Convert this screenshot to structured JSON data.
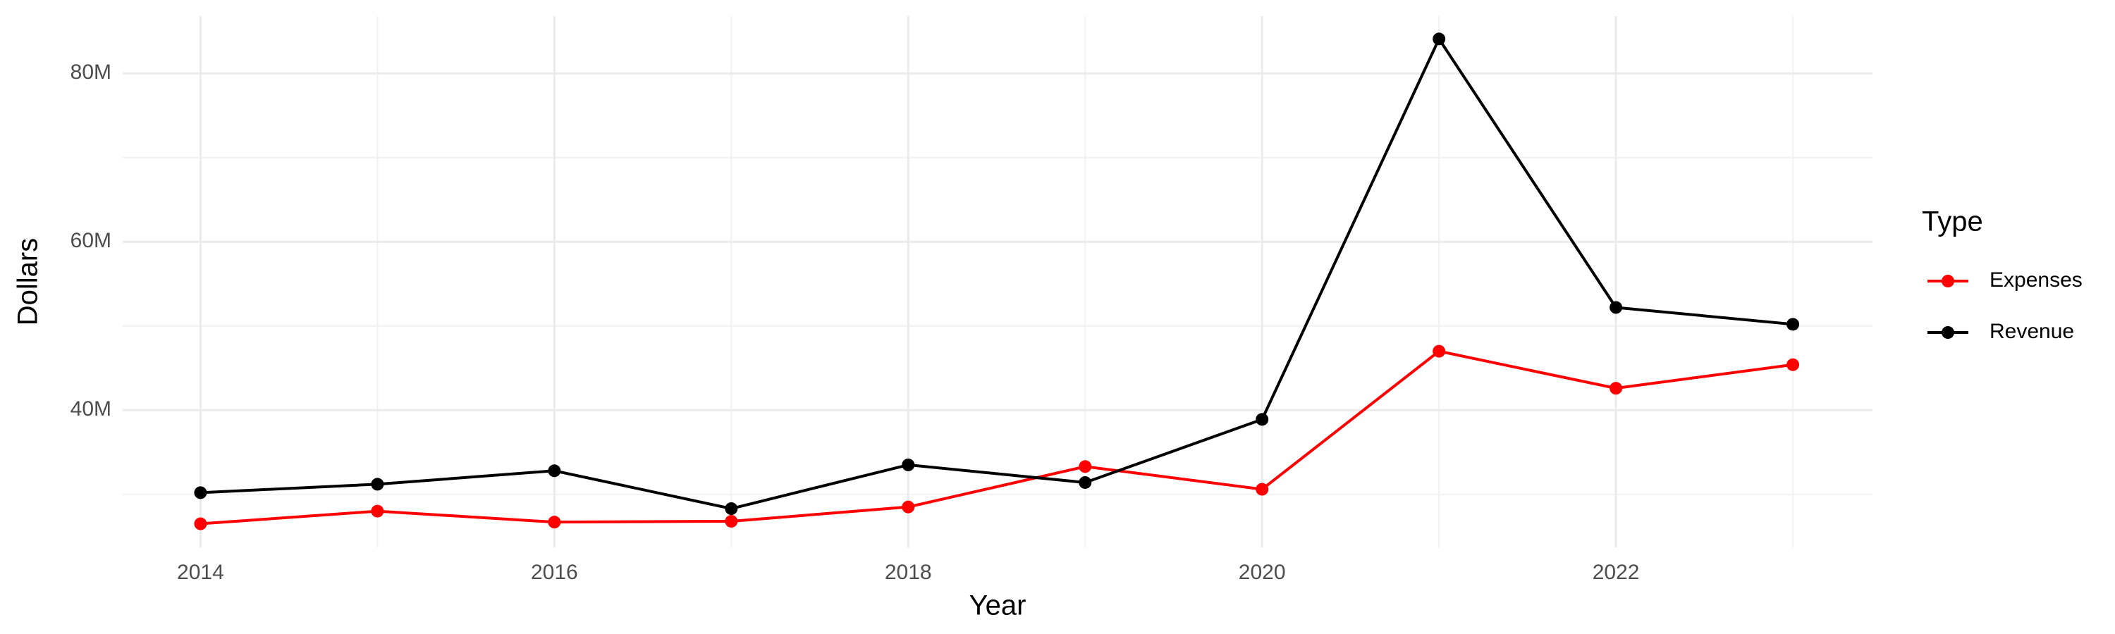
{
  "chart_data": {
    "type": "line",
    "x_label": "Year",
    "y_label": "Dollars",
    "legend_title": "Type",
    "x": [
      2014,
      2015,
      2016,
      2017,
      2018,
      2019,
      2020,
      2021,
      2022,
      2023
    ],
    "series": [
      {
        "name": "Expenses",
        "color": "#ff0000",
        "values": [
          26500000,
          28000000,
          26700000,
          26800000,
          28500000,
          33300000,
          30600000,
          47000000,
          42600000,
          45400000
        ]
      },
      {
        "name": "Revenue",
        "color": "#000000",
        "values": [
          30200000,
          31200000,
          32800000,
          28300000,
          33500000,
          31400000,
          38900000,
          84100000,
          52200000,
          50200000
        ]
      }
    ],
    "xlim": [
      2013.56,
      2023.45
    ],
    "xticks": [
      2014,
      2016,
      2018,
      2020,
      2022
    ],
    "ylim": [
      23700000,
      86800000
    ],
    "yticks": [
      {
        "value": 40000000,
        "label": "40M"
      },
      {
        "value": 60000000,
        "label": "60M"
      },
      {
        "value": 80000000,
        "label": "80M"
      }
    ],
    "grid": true,
    "legend": "right"
  }
}
